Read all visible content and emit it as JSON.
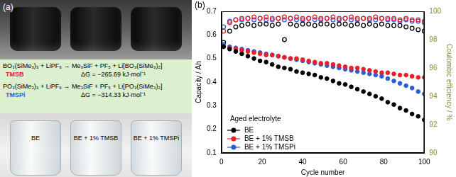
{
  "panel_a": {
    "label": "(a)",
    "reactions": [
      {
        "equation": "BO₃(SiMe₃)₃ + LiPF₆ → Me₃SiF + PF₅ + Li[BO₃(SiMe₃)₂]",
        "additive": "TMSB",
        "color": "#e8202a",
        "delta_g": "ΔG = −265.69 kJ·mol⁻¹"
      },
      {
        "equation": "PO₃(SiMe₃)₃ + LiPF₆ → Me₃SiF + PF₅ + Li[PO₃(SiMe₃)₂]",
        "additive": "TMSPi",
        "color": "#2a5cdb",
        "delta_g": "ΔG = −314.33 kJ·mol⁻¹"
      }
    ],
    "vials": [
      "BE",
      "BE + 1% TMSB",
      "BE + 1% TMSPi"
    ]
  },
  "chart_data": {
    "type": "scatter",
    "title": "(b)",
    "x_label": "Cycle number",
    "y_label": "Capacity / Ah",
    "y2_label": "Coulombic efficiency / %",
    "annotations": [
      {
        "text": "Aged electrolyte"
      }
    ],
    "x": [
      1,
      4,
      7,
      10,
      13,
      16,
      19,
      22,
      25,
      28,
      31,
      34,
      37,
      40,
      43,
      46,
      49,
      52,
      55,
      58,
      61,
      64,
      67,
      70,
      73,
      76,
      79,
      82,
      85,
      88,
      91,
      94,
      97,
      100
    ],
    "series": [
      {
        "name": "BE",
        "color": "#000000",
        "marker": "circle",
        "axis": "y",
        "values": [
          0.55,
          0.54,
          0.53,
          0.52,
          0.51,
          0.5,
          0.49,
          0.485,
          0.475,
          0.465,
          0.46,
          0.455,
          0.445,
          0.44,
          0.435,
          0.43,
          0.42,
          0.415,
          0.405,
          0.395,
          0.39,
          0.38,
          0.37,
          0.36,
          0.35,
          0.34,
          0.33,
          0.315,
          0.305,
          0.29,
          0.28,
          0.265,
          0.255,
          0.24
        ]
      },
      {
        "name": "BE + 1% TMSB",
        "color": "#e8202a",
        "marker": "circle",
        "axis": "y",
        "values": [
          0.55,
          0.545,
          0.54,
          0.535,
          0.53,
          0.525,
          0.52,
          0.515,
          0.515,
          0.51,
          0.505,
          0.5,
          0.5,
          0.495,
          0.49,
          0.485,
          0.48,
          0.48,
          0.475,
          0.47,
          0.465,
          0.46,
          0.46,
          0.455,
          0.45,
          0.445,
          0.44,
          0.44,
          0.435,
          0.43,
          0.43,
          0.425,
          0.42,
          0.42
        ]
      },
      {
        "name": "BE + 1% TMSPi",
        "color": "#2a5cdb",
        "marker": "circle",
        "axis": "y",
        "values": [
          0.56,
          0.55,
          0.545,
          0.54,
          0.535,
          0.53,
          0.525,
          0.52,
          0.515,
          0.51,
          0.505,
          0.5,
          0.495,
          0.49,
          0.485,
          0.48,
          0.475,
          0.47,
          0.465,
          0.46,
          0.455,
          0.45,
          0.445,
          0.44,
          0.435,
          0.43,
          0.425,
          0.415,
          0.405,
          0.395,
          0.385,
          0.375,
          0.36,
          0.35
        ]
      },
      {
        "name": "BE",
        "color": "#000000",
        "marker": "open_circle",
        "axis": "y2",
        "values": [
          97.8,
          98.6,
          98.9,
          99.0,
          99.1,
          99.0,
          99.1,
          99.1,
          99.0,
          99.1,
          98.0,
          99.1,
          99.0,
          99.1,
          99.1,
          99.0,
          99.1,
          99.1,
          99.0,
          99.1,
          99.1,
          99.0,
          99.1,
          99.0,
          99.1,
          99.0,
          99.1,
          99.0,
          99.0,
          99.0,
          98.9,
          98.8,
          98.7,
          98.6
        ]
      },
      {
        "name": "BE + 1% TMSB",
        "color": "#e8202a",
        "marker": "open_circle",
        "axis": "y2",
        "values": [
          98.6,
          99.2,
          99.4,
          99.5,
          99.5,
          99.6,
          99.5,
          99.6,
          99.5,
          99.5,
          99.6,
          99.5,
          99.6,
          99.5,
          99.5,
          99.6,
          99.5,
          99.5,
          99.6,
          99.5,
          99.5,
          99.6,
          99.5,
          99.5,
          99.5,
          99.6,
          99.5,
          99.5,
          99.5,
          99.4,
          99.5,
          99.4,
          99.4,
          99.3
        ]
      },
      {
        "name": "BE + 1% TMSPi",
        "color": "#2a5cdb",
        "marker": "open_circle",
        "axis": "y2",
        "values": [
          98.9,
          99.3,
          99.4,
          99.4,
          99.5,
          99.4,
          99.5,
          99.4,
          99.4,
          99.5,
          99.4,
          99.5,
          99.4,
          99.4,
          99.5,
          99.4,
          99.4,
          99.5,
          99.4,
          99.4,
          99.5,
          99.4,
          99.4,
          99.5,
          99.4,
          99.4,
          99.5,
          99.4,
          99.4,
          99.3,
          99.4,
          99.3,
          99.3,
          99.2
        ]
      }
    ],
    "xlim": [
      0,
      100
    ],
    "xticks": [
      0,
      20,
      40,
      60,
      80,
      100
    ],
    "ylim": [
      0.1,
      0.7
    ],
    "yticks": [
      0.1,
      0.2,
      0.3,
      0.4,
      0.5,
      0.6,
      0.7
    ],
    "y2lim": [
      90,
      100
    ],
    "y2ticks": [
      90,
      92,
      94,
      96,
      98,
      100
    ],
    "grid": false,
    "legend": "bottom-left"
  }
}
